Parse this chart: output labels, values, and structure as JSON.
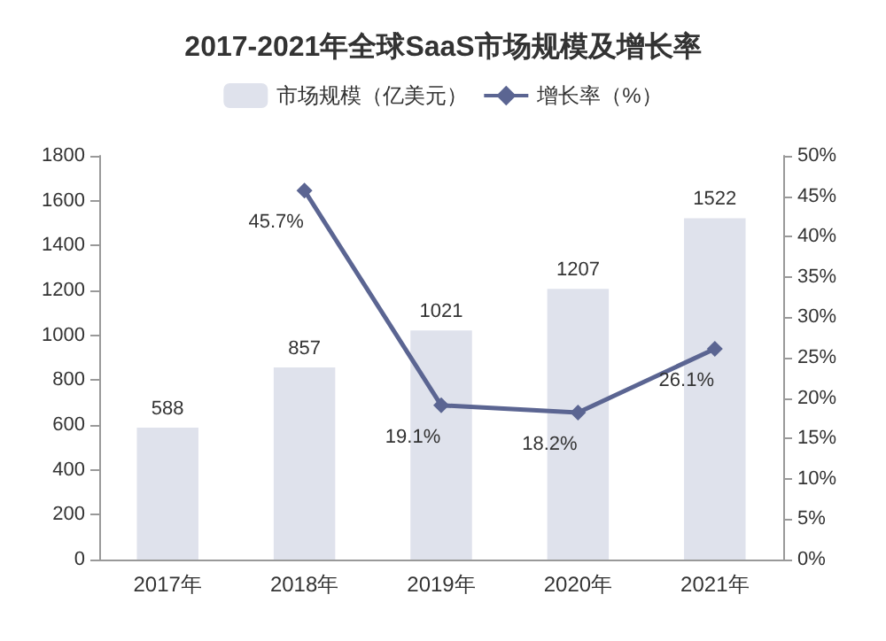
{
  "chart_data": {
    "type": "bar",
    "title": "2017-2021年全球SaaS市场规模及增长率",
    "categories": [
      "2017年",
      "2018年",
      "2019年",
      "2020年",
      "2021年"
    ],
    "series": [
      {
        "name": "市场规模（亿美元）",
        "color": "#dfe2ec",
        "values": [
          588,
          857,
          1021,
          1207,
          1522
        ],
        "value_labels": [
          "588",
          "857",
          "1021",
          "1207",
          "1522"
        ]
      },
      {
        "name": "增长率（%）",
        "type": "line",
        "axis": "y2",
        "color": "#5b6592",
        "values": [
          null,
          45.7,
          19.1,
          18.2,
          26.1
        ],
        "value_labels": [
          null,
          "45.7%",
          "19.1%",
          "18.2%",
          "26.1%"
        ]
      }
    ],
    "ylim": [
      0,
      1800
    ],
    "yticks": [
      0,
      200,
      400,
      600,
      800,
      1000,
      1200,
      1400,
      1600,
      1800
    ],
    "y2lim": [
      0,
      50
    ],
    "y2ticks": [
      {
        "value": 0,
        "label": "0%"
      },
      {
        "value": 5,
        "label": "5%"
      },
      {
        "value": 10,
        "label": "10%"
      },
      {
        "value": 15,
        "label": "15%"
      },
      {
        "value": 20,
        "label": "20%"
      },
      {
        "value": 25,
        "label": "25%"
      },
      {
        "value": 30,
        "label": "30%"
      },
      {
        "value": 35,
        "label": "35%"
      },
      {
        "value": 40,
        "label": "40%"
      },
      {
        "value": 45,
        "label": "45%"
      },
      {
        "value": 50,
        "label": "50%"
      }
    ],
    "legend": "top",
    "grid": false,
    "marker": "diamond"
  }
}
